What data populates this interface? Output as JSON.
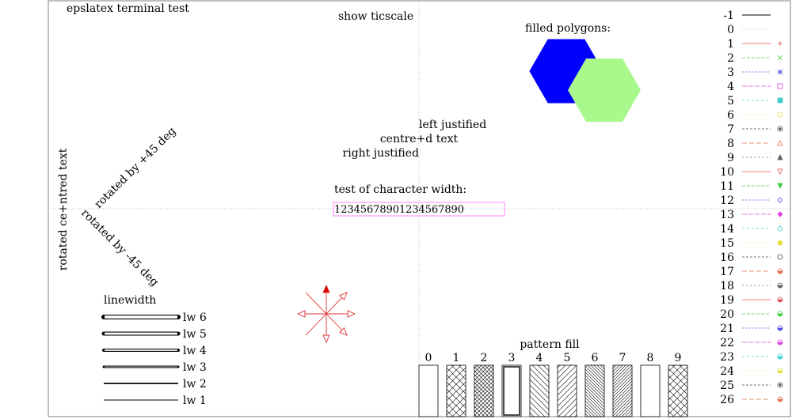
{
  "title": "epslatex terminal test",
  "ticscale_label": "show ticscale",
  "filled_polygons_label": "filled polygons:",
  "colors": {
    "blue": "#0000ff",
    "light_green": "#a8f88c",
    "arrow_red": "#e03030",
    "char_box": "#ff66ff"
  },
  "justify": {
    "left": "left justified",
    "centre": "centre+d text",
    "right": "right justified"
  },
  "char_width": {
    "label": "test of character width:",
    "sample": "12345678901234567890"
  },
  "rotated": {
    "vertical": "rotated ce+ntred text",
    "plus45": "rotated by +45 deg",
    "minus45": "rotated by -45 deg"
  },
  "linewidth": {
    "title": "linewidth",
    "items": [
      {
        "label": "lw 6",
        "width": 6
      },
      {
        "label": "lw 5",
        "width": 5
      },
      {
        "label": "lw 4",
        "width": 4
      },
      {
        "label": "lw 3",
        "width": 3
      },
      {
        "label": "lw 2",
        "width": 2
      },
      {
        "label": "lw 1",
        "width": 1
      }
    ]
  },
  "pattern_fill": {
    "title": "pattern fill",
    "bars": [
      {
        "label": "0",
        "pattern": "empty"
      },
      {
        "label": "1",
        "pattern": "crosshatch"
      },
      {
        "label": "2",
        "pattern": "dense-crosshatch"
      },
      {
        "label": "3",
        "pattern": "solid-border"
      },
      {
        "label": "4",
        "pattern": "diag-back"
      },
      {
        "label": "5",
        "pattern": "diag-fwd"
      },
      {
        "label": "6",
        "pattern": "diag-back-dense"
      },
      {
        "label": "7",
        "pattern": "diag-fwd-dense"
      },
      {
        "label": "8",
        "pattern": "empty"
      },
      {
        "label": "9",
        "pattern": "crosshatch"
      }
    ]
  },
  "line_types": [
    {
      "label": "-1",
      "color": "#000000",
      "dash": "",
      "marker": ""
    },
    {
      "label": "0",
      "color": "#a0a0a0",
      "dash": "1,3",
      "marker": ""
    },
    {
      "label": "1",
      "color": "#e05050",
      "dash": "",
      "marker": "plus"
    },
    {
      "label": "2",
      "color": "#40d040",
      "dash": "4,2",
      "marker": "cross"
    },
    {
      "label": "3",
      "color": "#5050e0",
      "dash": "2,2",
      "marker": "star"
    },
    {
      "label": "4",
      "color": "#e040e0",
      "dash": "6,2",
      "marker": "square"
    },
    {
      "label": "5",
      "color": "#40d0d0",
      "dash": "3,3",
      "marker": "square-filled"
    },
    {
      "label": "6",
      "color": "#e0e040",
      "dash": "1,2",
      "marker": "circle"
    },
    {
      "label": "7",
      "color": "#404040",
      "dash": "3,2",
      "marker": "dot-circle"
    },
    {
      "label": "8",
      "color": "#e07050",
      "dash": "6,3",
      "marker": "triangle"
    },
    {
      "label": "9",
      "color": "#606060",
      "dash": "2,3",
      "marker": "triangle-filled"
    },
    {
      "label": "10",
      "color": "#e05050",
      "dash": "",
      "marker": "triangle-down"
    },
    {
      "label": "11",
      "color": "#40d040",
      "dash": "4,2",
      "marker": "triangle-down-filled"
    },
    {
      "label": "12",
      "color": "#5050e0",
      "dash": "2,2",
      "marker": "diamond"
    },
    {
      "label": "13",
      "color": "#e040e0",
      "dash": "6,2",
      "marker": "diamond-filled"
    },
    {
      "label": "14",
      "color": "#40d0d0",
      "dash": "3,3",
      "marker": "pentagon"
    },
    {
      "label": "15",
      "color": "#e0e040",
      "dash": "1,2",
      "marker": "pentagon-filled"
    },
    {
      "label": "16",
      "color": "#404040",
      "dash": "3,2",
      "marker": "circle"
    },
    {
      "label": "17",
      "color": "#e07050",
      "dash": "6,3",
      "marker": "half-circle"
    },
    {
      "label": "18",
      "color": "#606060",
      "dash": "2,3",
      "marker": "half-circle"
    },
    {
      "label": "19",
      "color": "#e05050",
      "dash": "",
      "marker": "half-circle"
    },
    {
      "label": "20",
      "color": "#40d040",
      "dash": "4,2",
      "marker": "half-circle"
    },
    {
      "label": "21",
      "color": "#5050e0",
      "dash": "2,2",
      "marker": "half-circle"
    },
    {
      "label": "22",
      "color": "#e040e0",
      "dash": "6,2",
      "marker": "half-circle"
    },
    {
      "label": "23",
      "color": "#40d0d0",
      "dash": "3,3",
      "marker": "half-circle"
    },
    {
      "label": "24",
      "color": "#e0e040",
      "dash": "1,2",
      "marker": "half-circle"
    },
    {
      "label": "25",
      "color": "#404040",
      "dash": "3,2",
      "marker": "dot-circle"
    },
    {
      "label": "26",
      "color": "#e07050",
      "dash": "6,3",
      "marker": "half-circle"
    }
  ]
}
